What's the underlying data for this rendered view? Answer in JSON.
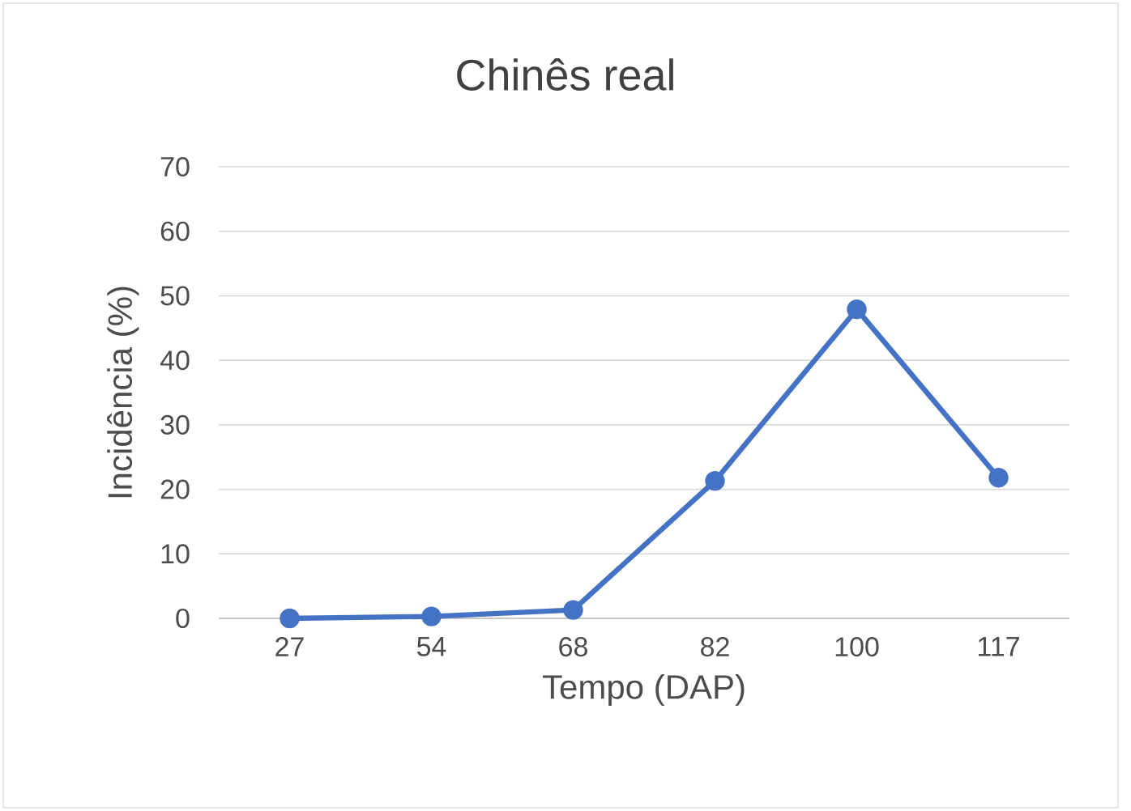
{
  "chart_data": {
    "type": "line",
    "title": "Chinês real",
    "xlabel": "Tempo (DAP)",
    "ylabel": "Incidência (%)",
    "categories": [
      "27",
      "54",
      "68",
      "82",
      "100",
      "117"
    ],
    "series": [
      {
        "color": "#4472c4",
        "values": [
          0,
          0.3,
          1.3,
          21.3,
          47.9,
          21.8
        ]
      }
    ],
    "ylim": [
      0,
      70
    ],
    "yticks": [
      0,
      10,
      20,
      30,
      40,
      50,
      60,
      70
    ],
    "grid": "y",
    "marker": "circle",
    "line_style": "solid"
  }
}
